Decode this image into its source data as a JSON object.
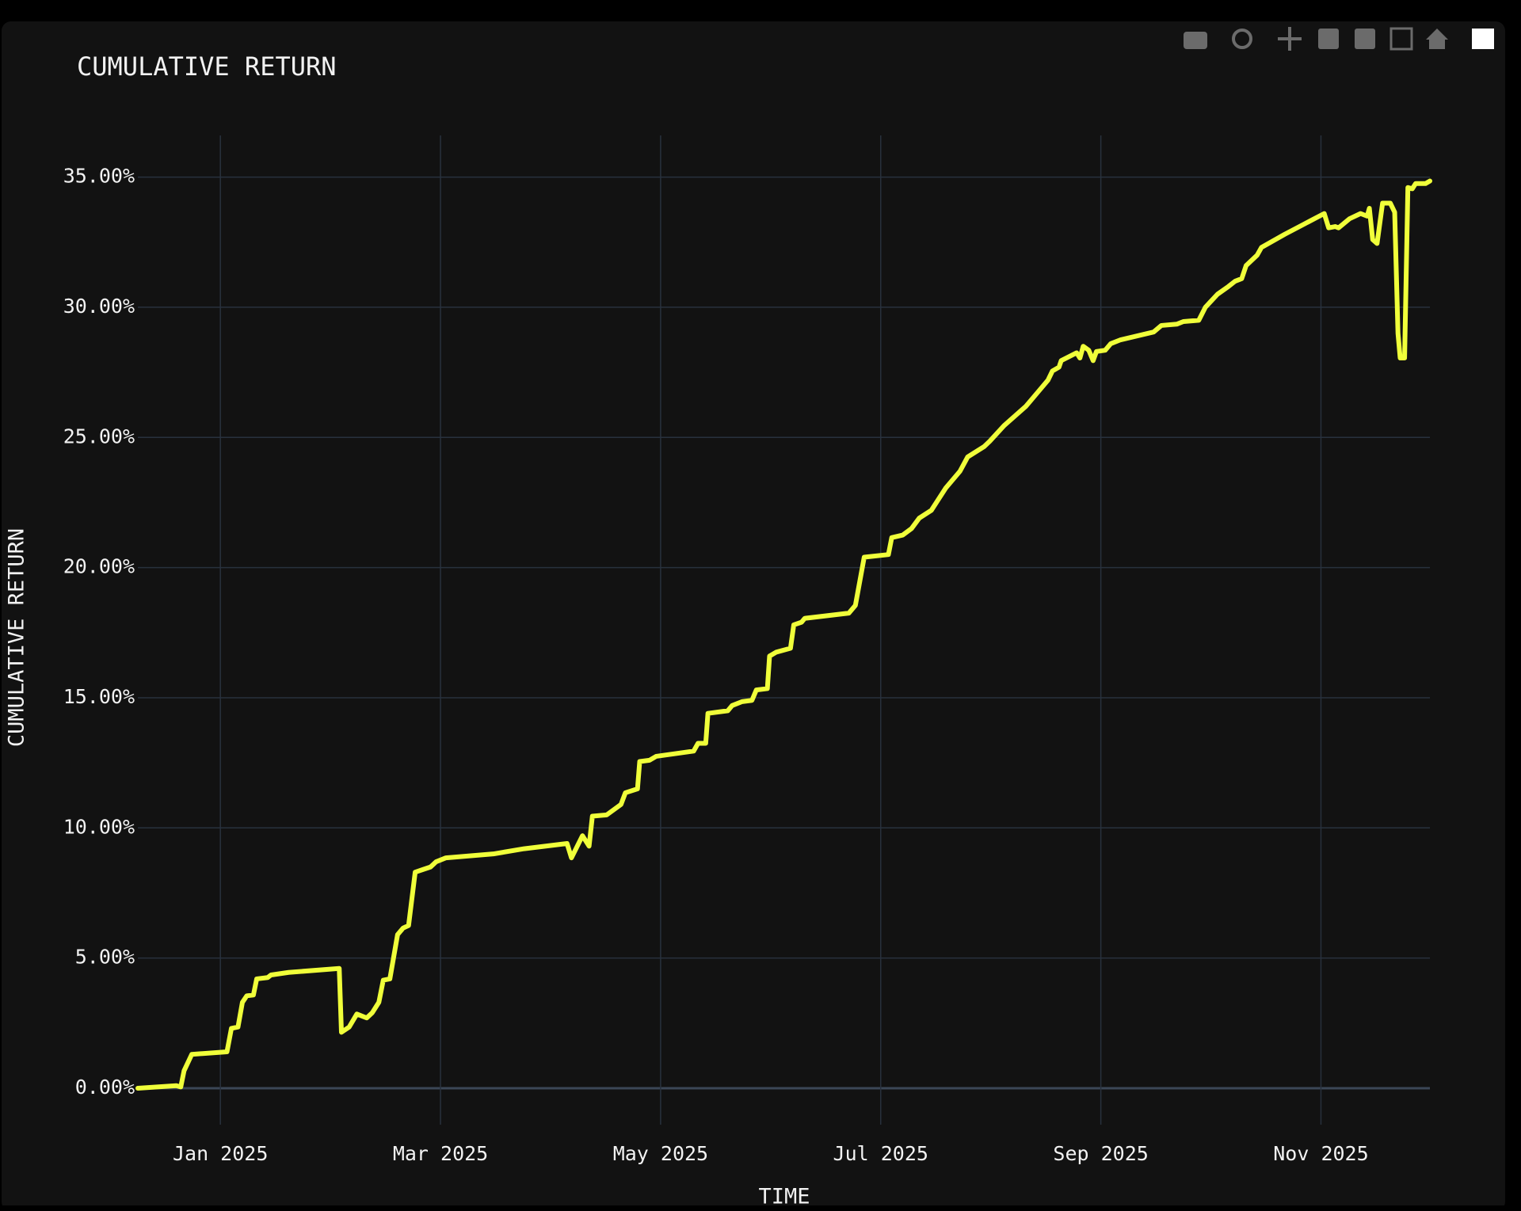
{
  "chart_data": {
    "type": "line",
    "title": "CUMULATIVE RETURN",
    "x_label": "TIME",
    "y_label": "CUMULATIVE RETURN",
    "grid": true,
    "xlim": [
      -0.75,
      10.99
    ],
    "xticks": [
      {
        "value": 0,
        "label": "Jan 2025"
      },
      {
        "value": 2,
        "label": "Mar 2025"
      },
      {
        "value": 4,
        "label": "May 2025"
      },
      {
        "value": 6,
        "label": "Jul 2025"
      },
      {
        "value": 8,
        "label": "Sep 2025"
      },
      {
        "value": 10,
        "label": "Nov 2025"
      }
    ],
    "ylim": [
      -1.4,
      36.6
    ],
    "yticks": [
      {
        "value": 0,
        "label": "0.00%"
      },
      {
        "value": 5,
        "label": "5.00%"
      },
      {
        "value": 10,
        "label": "10.00%"
      },
      {
        "value": 15,
        "label": "15.00%"
      },
      {
        "value": 20,
        "label": "20.00%"
      },
      {
        "value": 25,
        "label": "25.00%"
      },
      {
        "value": 30,
        "label": "30.00%"
      },
      {
        "value": 35,
        "label": "35.00%"
      }
    ],
    "series": [
      {
        "color": "#f0ff3a",
        "x": [
          -0.75,
          -0.4,
          -0.36,
          -0.33,
          -0.26,
          0.06,
          0.1,
          0.16,
          0.2,
          0.24,
          0.3,
          0.33,
          0.43,
          0.46,
          0.62,
          1.08,
          1.1,
          1.17,
          1.24,
          1.33,
          1.38,
          1.44,
          1.48,
          1.54,
          1.61,
          1.66,
          1.71,
          1.77,
          1.84,
          1.91,
          1.96,
          2.05,
          2.19,
          2.48,
          2.76,
          3.15,
          3.19,
          3.29,
          3.35,
          3.38,
          3.51,
          3.64,
          3.68,
          3.79,
          3.81,
          3.9,
          3.96,
          4.3,
          4.34,
          4.41,
          4.43,
          4.61,
          4.65,
          4.74,
          4.83,
          4.87,
          4.97,
          4.99,
          5.05,
          5.18,
          5.21,
          5.28,
          5.31,
          5.71,
          5.77,
          5.85,
          6.07,
          6.1,
          6.2,
          6.28,
          6.35,
          6.46,
          6.59,
          6.72,
          6.79,
          6.94,
          6.99,
          7.12,
          7.32,
          7.43,
          7.52,
          7.56,
          7.62,
          7.64,
          7.78,
          7.81,
          7.84,
          7.89,
          7.93,
          7.96,
          8.04,
          8.09,
          8.18,
          8.48,
          8.55,
          8.69,
          8.75,
          8.89,
          8.95,
          9.06,
          9.16,
          9.22,
          9.28,
          9.32,
          9.42,
          9.46,
          9.67,
          9.85,
          10.03,
          10.07,
          10.13,
          10.16,
          10.26,
          10.36,
          10.42,
          10.44,
          10.47,
          10.51,
          10.56,
          10.63,
          10.67,
          10.7,
          10.72,
          10.76,
          10.79,
          10.83,
          10.86,
          10.95,
          10.99
        ],
        "values": [
          0,
          0.1,
          0.05,
          0.67,
          1.3,
          1.4,
          2.3,
          2.35,
          3.3,
          3.55,
          3.58,
          4.2,
          4.25,
          4.35,
          4.45,
          4.6,
          2.15,
          2.35,
          2.85,
          2.7,
          2.9,
          3.3,
          4.15,
          4.2,
          5.9,
          6.15,
          6.25,
          8.3,
          8.4,
          8.5,
          8.7,
          8.85,
          8.9,
          9.0,
          9.2,
          9.4,
          8.85,
          9.7,
          9.3,
          10.45,
          10.5,
          10.9,
          11.35,
          11.5,
          12.55,
          12.6,
          12.75,
          12.95,
          13.25,
          13.25,
          14.4,
          14.5,
          14.7,
          14.85,
          14.9,
          15.3,
          15.35,
          16.6,
          16.75,
          16.9,
          17.8,
          17.9,
          18.05,
          18.25,
          18.55,
          20.4,
          20.5,
          21.15,
          21.25,
          21.5,
          21.9,
          22.2,
          23.05,
          23.7,
          24.25,
          24.65,
          24.85,
          25.45,
          26.2,
          26.75,
          27.2,
          27.55,
          27.7,
          27.95,
          28.25,
          28.05,
          28.5,
          28.35,
          27.95,
          28.3,
          28.35,
          28.6,
          28.75,
          29.05,
          29.3,
          29.35,
          29.45,
          29.5,
          30.0,
          30.5,
          30.8,
          31.0,
          31.1,
          31.6,
          32.0,
          32.3,
          32.8,
          33.2,
          33.6,
          33.05,
          33.1,
          33.05,
          33.4,
          33.6,
          33.5,
          33.8,
          32.6,
          32.45,
          34.0,
          34.0,
          33.65,
          29.0,
          28.05,
          28.05,
          34.6,
          34.55,
          34.75,
          34.75,
          34.85
        ]
      }
    ]
  }
}
